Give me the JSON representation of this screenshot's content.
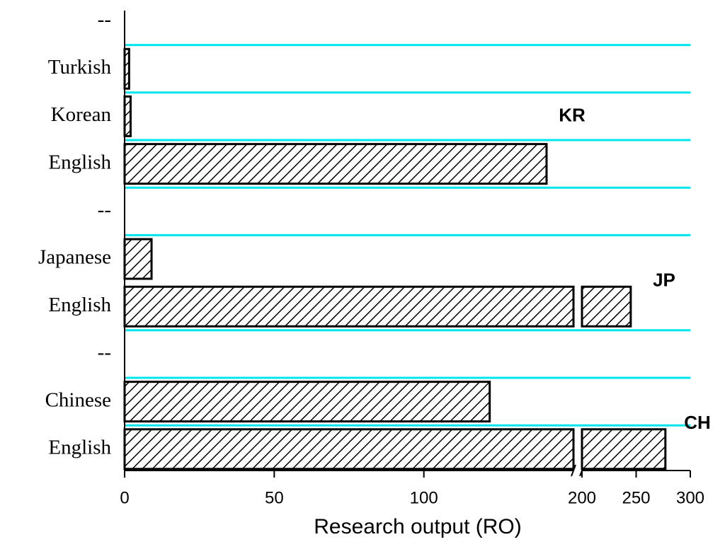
{
  "chart_data": {
    "type": "hbar_broken",
    "xlabel": "Research output (RO)",
    "categories": [
      "--",
      "Turkish",
      "Korean",
      "English",
      "--",
      "Japanese",
      "English",
      "--",
      "Chinese",
      "English"
    ],
    "values": [
      null,
      1.5,
      2,
      141,
      null,
      9,
      245,
      null,
      122,
      277
    ],
    "xlim": [
      0,
      300
    ],
    "axis_break": [
      150,
      200
    ],
    "xticks": [
      0,
      50,
      100,
      200,
      250,
      300
    ],
    "color": "#000000",
    "separator_color": "#00e5ee",
    "annotations": [
      {
        "text": "KR",
        "row": 2
      },
      {
        "text": "JP",
        "row": 5.5
      },
      {
        "text": "CH",
        "row": 8.5
      }
    ]
  }
}
